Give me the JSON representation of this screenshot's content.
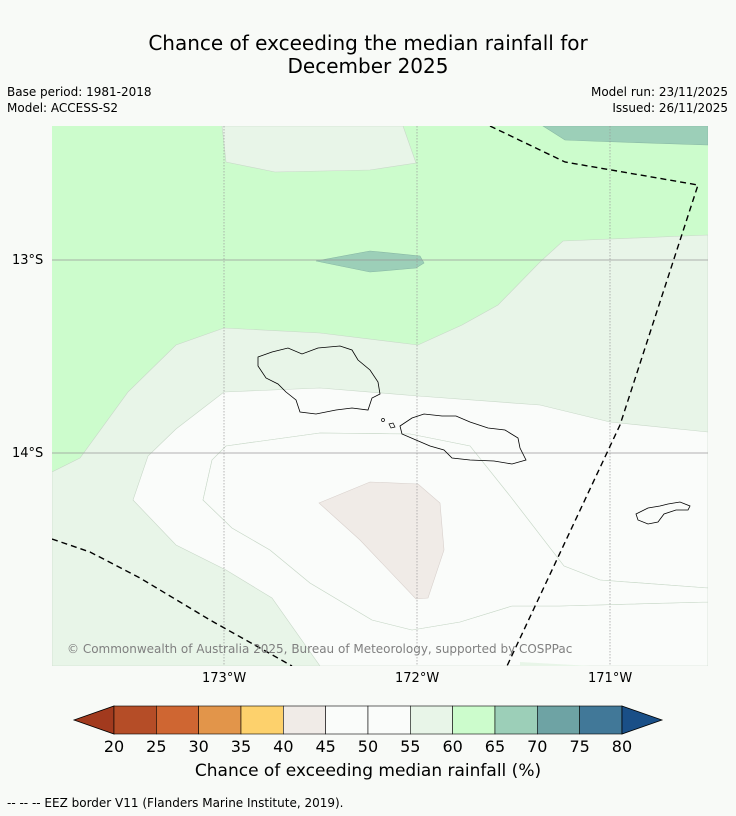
{
  "title": {
    "line1": "Chance of exceeding the median rainfall for",
    "line2": "December 2025"
  },
  "meta": {
    "base_period": "Base period: 1981-2018",
    "model": "Model: ACCESS-S2",
    "model_run": "Model run: 23/11/2025",
    "issued": "Issued: 26/11/2025"
  },
  "axes": {
    "lat_labels": [
      "13°S",
      "14°S"
    ],
    "lon_labels": [
      "173°W",
      "172°W",
      "171°W"
    ]
  },
  "copyright": "© Commonwealth of Australia 2025, Bureau of Meteorology, supported by COSPPac",
  "colorbar": {
    "ticks": [
      "20",
      "25",
      "30",
      "35",
      "40",
      "45",
      "50",
      "55",
      "60",
      "65",
      "70",
      "75",
      "80"
    ],
    "label": "Chance of exceeding median rainfall (%)",
    "colors": [
      "#a23a1e",
      "#b54d27",
      "#cf6632",
      "#e2954a",
      "#fdd16c",
      "#f0ebe7",
      "#fafcfa",
      "#fafcfa",
      "#e8f5e8",
      "#ccfccc",
      "#9ccfb8",
      "#6ea3a4",
      "#417898",
      "#1a4f87"
    ]
  },
  "legend_footer": "--  --  -- EEZ border V11 (Flanders Marine Institute, 2019)."
}
